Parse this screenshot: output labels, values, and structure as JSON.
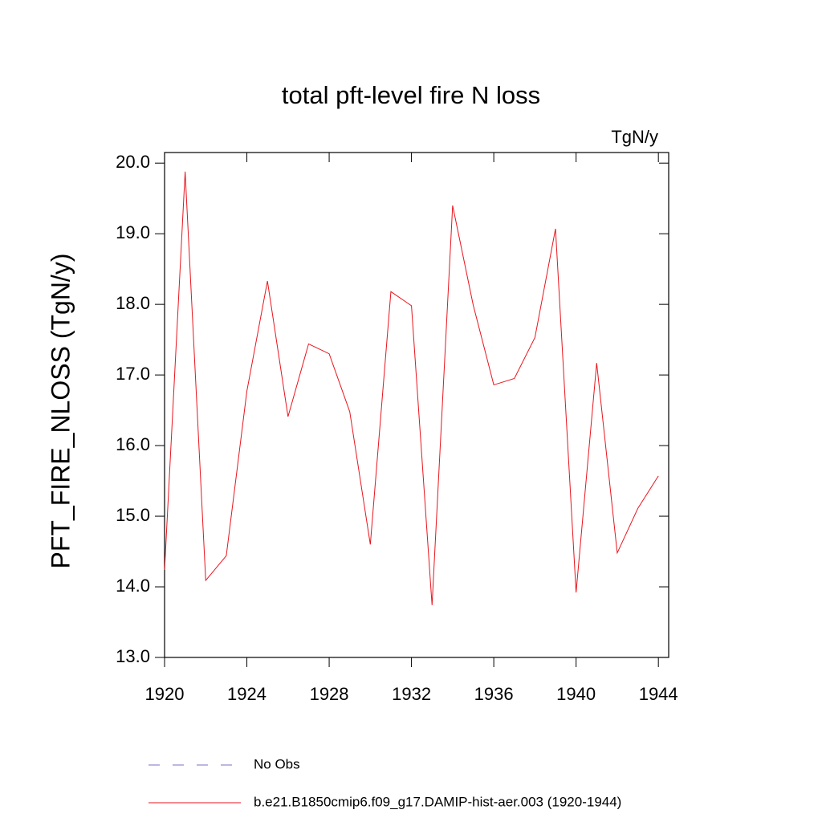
{
  "chart_data": {
    "type": "line",
    "title": "total pft-level fire N loss",
    "units": "TgN/y",
    "y_label": "PFT_FIRE_NLOSS  (TgN/y)",
    "x": [
      1920,
      1921,
      1922,
      1923,
      1924,
      1925,
      1926,
      1927,
      1928,
      1929,
      1930,
      1931,
      1932,
      1933,
      1934,
      1935,
      1936,
      1937,
      1938,
      1939,
      1940,
      1941,
      1942,
      1943,
      1944
    ],
    "series": [
      {
        "name": "b.e21.B1850cmip6.f09_g17.DAMIP-hist-aer.003 (1920-1944)",
        "color": "#e8141c",
        "values": [
          14.24,
          19.88,
          14.09,
          14.44,
          16.77,
          18.33,
          16.41,
          17.44,
          17.3,
          16.48,
          14.6,
          18.18,
          17.98,
          13.74,
          19.4,
          17.99,
          16.86,
          16.95,
          17.53,
          19.07,
          13.92,
          17.17,
          14.48,
          15.11,
          15.57
        ]
      }
    ],
    "reference": {
      "name": "No Obs",
      "color": "#7b6fc8",
      "dashed": true
    },
    "xlim": [
      1920,
      1944.5
    ],
    "xticks": [
      1920,
      1924,
      1928,
      1932,
      1936,
      1940,
      1944
    ],
    "ylim": [
      13.0,
      20.15
    ],
    "yticks": [
      {
        "value": 13,
        "label": "13.0"
      },
      {
        "value": 14,
        "label": "14.0"
      },
      {
        "value": 15,
        "label": "15.0"
      },
      {
        "value": 16,
        "label": "16.0"
      },
      {
        "value": 17,
        "label": "17.0"
      },
      {
        "value": 18,
        "label": "18.0"
      },
      {
        "value": 19,
        "label": "19.0"
      },
      {
        "value": 20,
        "label": "20.0"
      }
    ]
  }
}
